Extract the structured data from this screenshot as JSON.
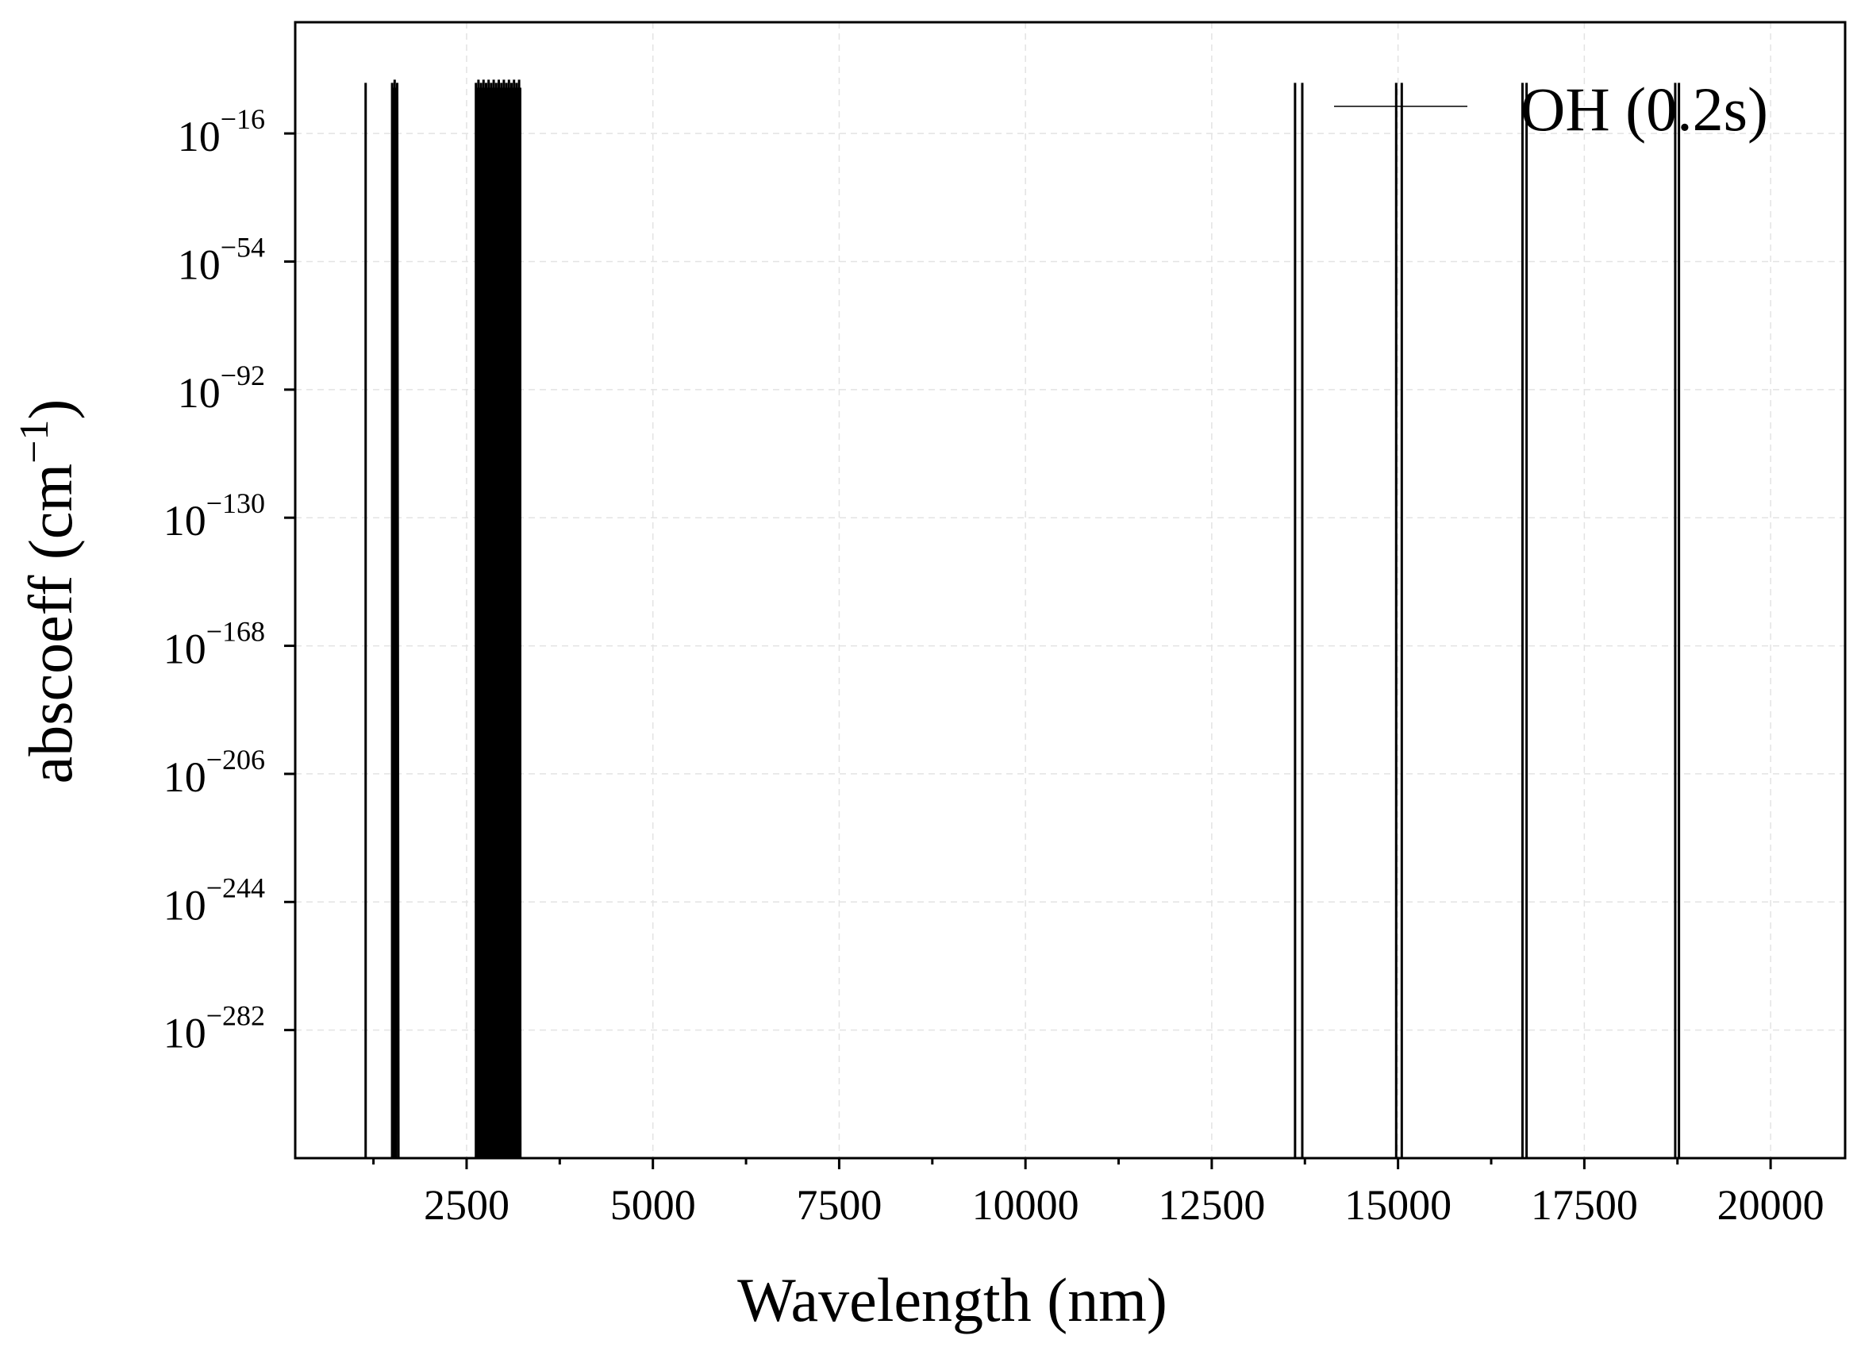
{
  "chart_data": {
    "type": "line",
    "xlabel": "Wavelength (nm)",
    "ylabel_base": "abscoeff (cm",
    "ylabel_sup": "−1",
    "ylabel_close": ")",
    "xlim": [
      200,
      21000
    ],
    "ylim_exp": [
      -320,
      17
    ],
    "y_scale": "log",
    "grid": true,
    "legend_position": "top-right",
    "x_ticks": [
      2500,
      5000,
      7500,
      10000,
      12500,
      15000,
      17500,
      20000
    ],
    "x_tick_labels": [
      "2500",
      "5000",
      "7500",
      "10000",
      "12500",
      "15000",
      "17500",
      "20000"
    ],
    "y_tick_exps": [
      -16,
      -54,
      -92,
      -130,
      -168,
      -206,
      -244,
      -282
    ],
    "y_tick_base": "10",
    "y_tick_sups": [
      "−16",
      "−54",
      "−92",
      "−130",
      "−168",
      "−206",
      "−244",
      "−282"
    ],
    "series": [
      {
        "name": "OH (0.2s)",
        "color": "#000000",
        "line_positions_nm": [
          1145,
          13618,
          13715,
          14975,
          15050,
          16670,
          16725,
          18720,
          18770
        ],
        "bands_nm": [
          [
            1500,
            1570
          ],
          [
            2625,
            3235
          ]
        ],
        "peak_exp": -1
      }
    ]
  }
}
